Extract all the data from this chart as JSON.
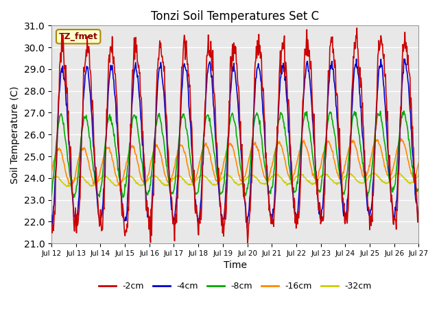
{
  "title": "Tonzi Soil Temperatures Set C",
  "ylabel": "Soil Temperature (C)",
  "xlabel": "Time",
  "ylim": [
    21.0,
    31.0
  ],
  "yticks": [
    21.0,
    22.0,
    23.0,
    24.0,
    25.0,
    26.0,
    27.0,
    28.0,
    29.0,
    30.0,
    31.0
  ],
  "xtick_labels": [
    "Jul 12",
    "Jul 13",
    "Jul 14",
    "Jul 15",
    "Jul 16",
    "Jul 17",
    "Jul 18",
    "Jul 19",
    "Jul 20",
    "Jul 21",
    "Jul 22",
    "Jul 23",
    "Jul 24",
    "Jul 25",
    "Jul 26",
    "Jul 27"
  ],
  "legend_labels": [
    "-2cm",
    "-4cm",
    "-8cm",
    "-16cm",
    "-32cm"
  ],
  "legend_colors": [
    "#cc0000",
    "#0000cc",
    "#00aa00",
    "#ff8800",
    "#cccc00"
  ],
  "bg_color": "#e8e8e8",
  "fig_color": "#ffffff",
  "label_box_text": "TZ_fmet",
  "label_box_facecolor": "#ffffcc",
  "label_box_edgecolor": "#aa8800",
  "label_box_textcolor": "#880000",
  "n_days": 15,
  "n_points_per_day": 48,
  "base_temp": 24.2,
  "base_trend": 0.02
}
